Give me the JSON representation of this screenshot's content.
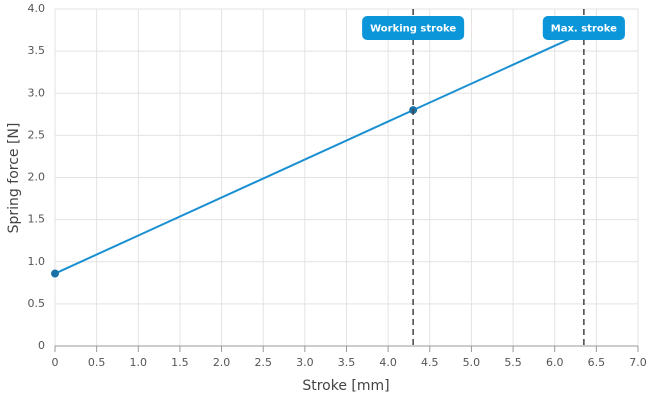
{
  "chart_data": {
    "type": "line",
    "x_label": "Stroke [mm]",
    "y_label": "Spring force [N]",
    "x": [
      0,
      4.3,
      6.35
    ],
    "series": [
      {
        "name": "Spring force",
        "color": "#1a90d2",
        "values": [
          0.86,
          2.8,
          3.72
        ]
      }
    ],
    "annotations": [
      {
        "x": 4.3,
        "label": "Working stroke"
      },
      {
        "x": 6.35,
        "label": "Max. stroke"
      }
    ],
    "annotation_color": "#0a96d9",
    "xlim": [
      0,
      7
    ],
    "xticks": [
      0,
      0.5,
      {
        "value": 1,
        "label": "1.0"
      },
      1.5,
      {
        "value": 2,
        "label": "2.0"
      },
      2.5,
      {
        "value": 3,
        "label": "3.0"
      },
      3.5,
      {
        "value": 4,
        "label": "4.0"
      },
      4.5,
      {
        "value": 5,
        "label": "5.0"
      },
      5.5,
      {
        "value": 6,
        "label": "6.0"
      },
      6.5,
      {
        "value": 7,
        "label": "7.0"
      }
    ],
    "ylim": [
      0,
      4
    ],
    "yticks": [
      0,
      0.5,
      {
        "value": 1,
        "label": "1.0"
      },
      1.5,
      {
        "value": 2,
        "label": "2.0"
      },
      2.5,
      {
        "value": 3,
        "label": "3.0"
      },
      3.5,
      {
        "value": 4,
        "label": "4.0"
      }
    ],
    "grid": true
  }
}
